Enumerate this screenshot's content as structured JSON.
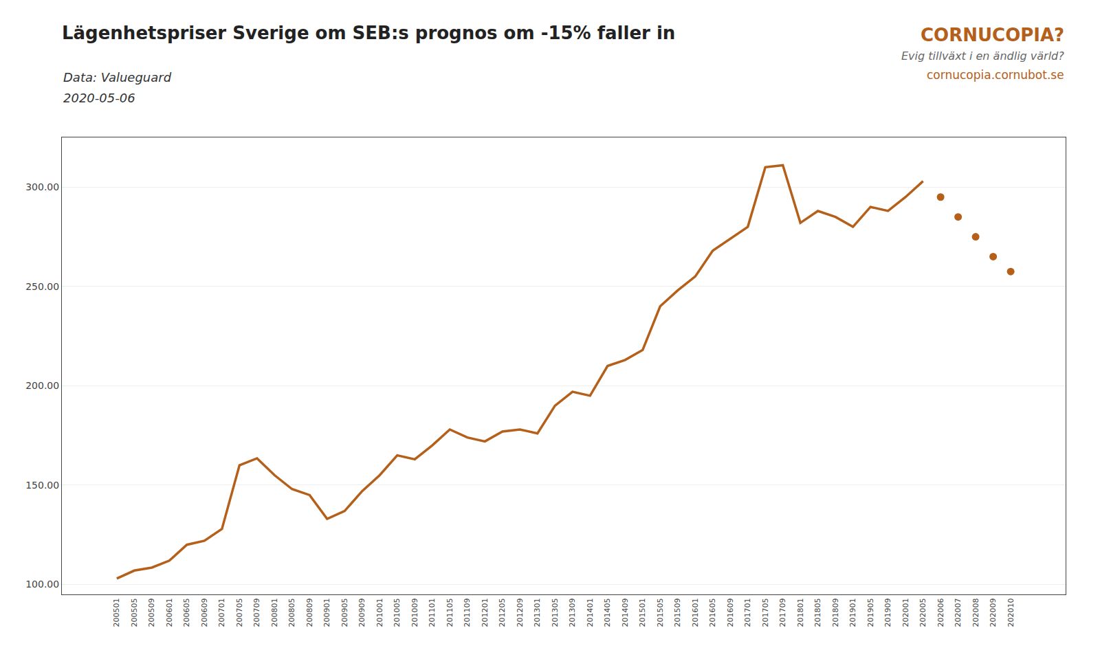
{
  "chart_data": {
    "type": "line",
    "title": "Lägenhetspriser Sverige om SEB:s prognos om -15% faller in",
    "subtitle": "Data: Valueguard",
    "annotations": [
      "2020-05-06",
      "CORNUCOPIA?",
      "Evig tillväxt i en ändlig värld?",
      "cornucopia.cornubot.se"
    ],
    "categories": [
      "200501",
      "200505",
      "200509",
      "200601",
      "200605",
      "200609",
      "200701",
      "200705",
      "200709",
      "200801",
      "200805",
      "200809",
      "200901",
      "200905",
      "200909",
      "201001",
      "201005",
      "201009",
      "201101",
      "201105",
      "201109",
      "201201",
      "201205",
      "201209",
      "201301",
      "201305",
      "201309",
      "201401",
      "201405",
      "201409",
      "201501",
      "201505",
      "201509",
      "201601",
      "201605",
      "201609",
      "201701",
      "201705",
      "201709",
      "201801",
      "201805",
      "201809",
      "201901",
      "201905",
      "201909",
      "202001",
      "202005",
      "202006",
      "202007",
      "202008",
      "202009",
      "202010"
    ],
    "series": [
      {
        "color": "#b5601a",
        "line_style": "solid",
        "values": [
          103.0,
          107.0,
          108.5,
          112.0,
          120.0,
          122.0,
          128.0,
          160.0,
          163.5,
          155.0,
          148.0,
          145.0,
          133.0,
          137.0,
          147.0,
          155.0,
          165.0,
          163.0,
          170.0,
          178.0,
          174.0,
          172.0,
          177.0,
          178.0,
          176.0,
          190.0,
          197.0,
          195.0,
          210.0,
          213.0,
          218.0,
          240.0,
          248.0,
          255.0,
          268.0,
          274.0,
          280.0,
          310.0,
          311.0,
          282.0,
          288.0,
          285.0,
          280.0,
          290.0,
          288.0,
          295.0,
          303.0,
          null,
          null,
          null,
          null,
          null
        ]
      },
      {
        "color": "#b5601a",
        "line_style": "none",
        "marker": "circle",
        "values": [
          null,
          null,
          null,
          null,
          null,
          null,
          null,
          null,
          null,
          null,
          null,
          null,
          null,
          null,
          null,
          null,
          null,
          null,
          null,
          null,
          null,
          null,
          null,
          null,
          null,
          null,
          null,
          null,
          null,
          null,
          null,
          null,
          null,
          null,
          null,
          null,
          null,
          null,
          null,
          null,
          null,
          null,
          null,
          null,
          null,
          null,
          null,
          295.0,
          285.0,
          275.0,
          265.0,
          257.5
        ]
      }
    ],
    "ylim": [
      95,
      325
    ],
    "yticks": [
      {
        "value": 100,
        "label": "100.00"
      },
      {
        "value": 150,
        "label": "150.00"
      },
      {
        "value": 200,
        "label": "200.00"
      },
      {
        "value": 250,
        "label": "250.00"
      },
      {
        "value": 300,
        "label": "300.00"
      }
    ],
    "grid": true
  }
}
